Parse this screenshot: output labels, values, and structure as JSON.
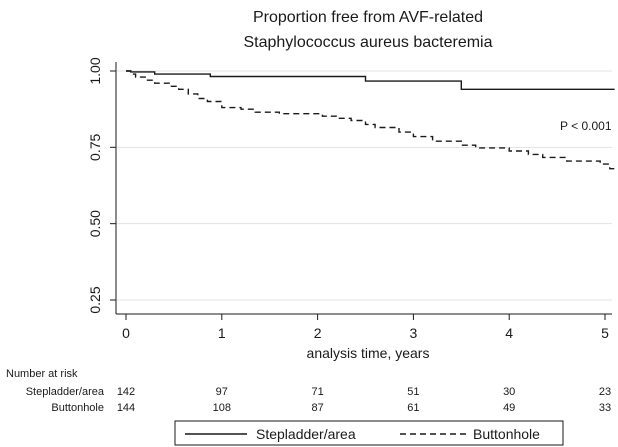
{
  "chart_data": {
    "type": "line",
    "title_lines": [
      "Proportion free from AVF-related",
      "Staphylococcus aureus bacteremia"
    ],
    "xlabel": "analysis time, years",
    "ylabel": "",
    "xlim": [
      0,
      5
    ],
    "ylim": [
      0.25,
      1.0
    ],
    "x_ticks": [
      0,
      1,
      2,
      3,
      4,
      5
    ],
    "y_ticks": [
      0.25,
      0.5,
      0.75,
      1.0
    ],
    "y_tick_labels": [
      "0.25",
      "0.50",
      "0.75",
      "1.00"
    ],
    "grid": true,
    "step": true,
    "annotation": "P < 0.001",
    "series": [
      {
        "name": "Stepladder/area",
        "color": "#1a1a1a",
        "dash": "solid",
        "x": [
          0,
          0.05,
          0.3,
          0.88,
          2.5,
          3.5,
          5.1
        ],
        "y": [
          1.0,
          0.997,
          0.99,
          0.982,
          0.967,
          0.94,
          0.94
        ]
      },
      {
        "name": "Buttonhole",
        "color": "#1a1a1a",
        "dash": "dashed",
        "x": [
          0,
          0.05,
          0.1,
          0.2,
          0.3,
          0.45,
          0.55,
          0.65,
          0.75,
          0.85,
          1.0,
          1.2,
          1.35,
          1.6,
          2.05,
          2.2,
          2.35,
          2.5,
          2.6,
          2.85,
          3.0,
          3.2,
          3.5,
          3.65,
          4.0,
          4.2,
          4.35,
          4.6,
          4.95,
          5.05,
          5.1
        ],
        "y": [
          1.0,
          0.99,
          0.98,
          0.97,
          0.96,
          0.95,
          0.94,
          0.925,
          0.91,
          0.9,
          0.88,
          0.875,
          0.865,
          0.86,
          0.852,
          0.845,
          0.838,
          0.825,
          0.815,
          0.8,
          0.785,
          0.77,
          0.757,
          0.748,
          0.738,
          0.727,
          0.717,
          0.705,
          0.695,
          0.68,
          0.68
        ]
      }
    ]
  },
  "risk_table": {
    "title": "Number at risk",
    "rows": [
      {
        "label": "Stepladder/area",
        "values": [
          "142",
          "97",
          "71",
          "51",
          "30",
          "23"
        ]
      },
      {
        "label": "Buttonhole",
        "values": [
          "144",
          "108",
          "87",
          "61",
          "49",
          "33"
        ]
      }
    ]
  },
  "legend": {
    "entries": [
      {
        "label": "Stepladder/area",
        "dash": "solid"
      },
      {
        "label": "Buttonhole",
        "dash": "dashed"
      }
    ]
  }
}
